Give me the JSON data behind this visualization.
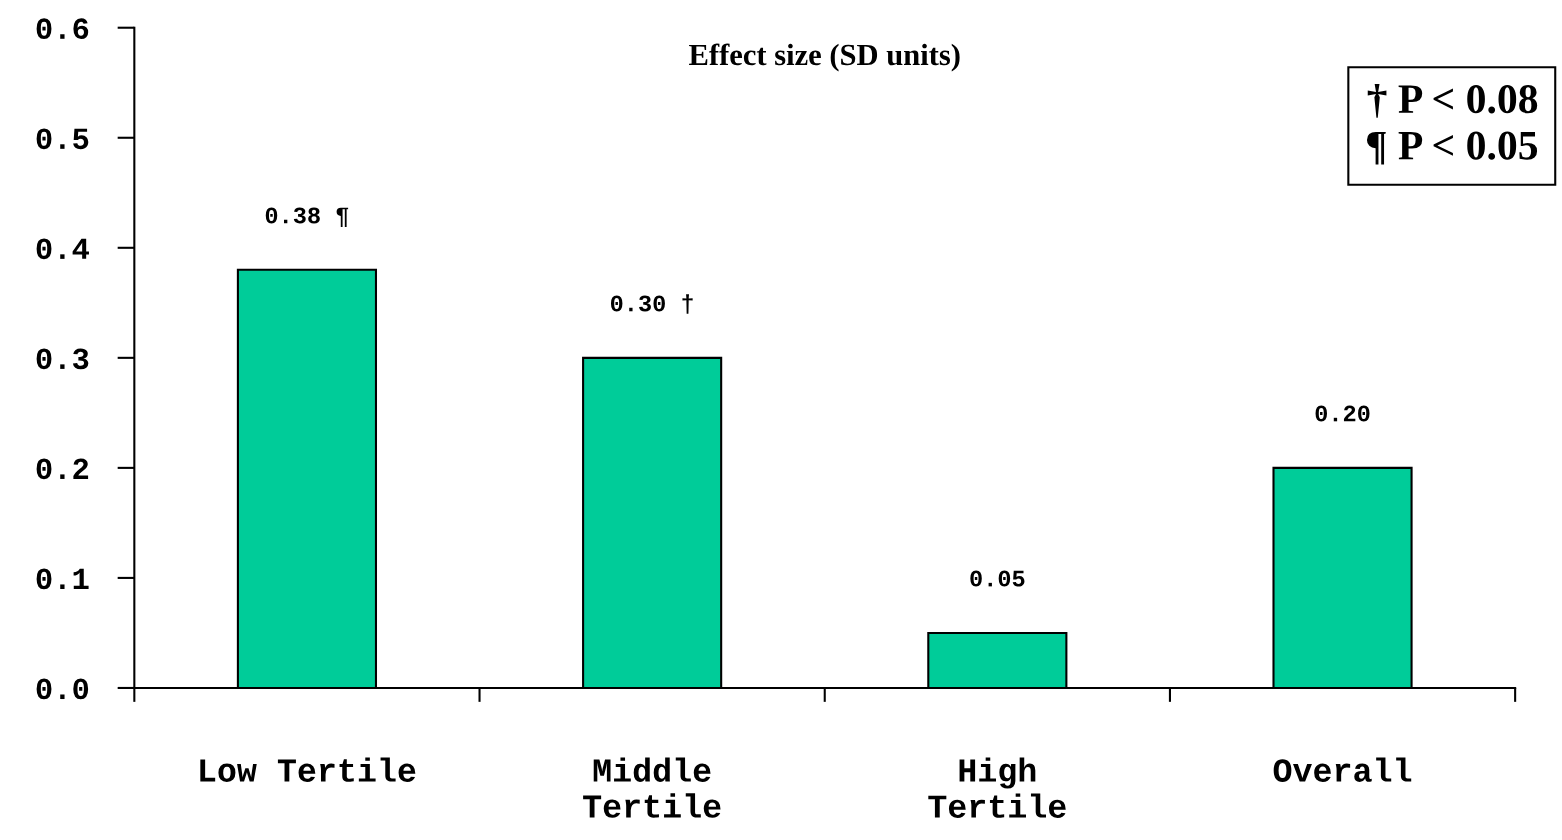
{
  "chart_data": {
    "type": "bar",
    "title": "Effect size (SD units)",
    "categories": [
      "Low Tertile",
      "Middle\nTertile",
      "High\nTertile",
      "Overall"
    ],
    "values": [
      0.38,
      0.3,
      0.05,
      0.2
    ],
    "value_labels": [
      "0.38 ¶",
      "0.30 †",
      "0.05",
      "0.20"
    ],
    "color": "#00cc99",
    "ylim": [
      0,
      0.6
    ],
    "yticks": [
      {
        "value": 0,
        "label": "0.0"
      },
      {
        "value": 0.1,
        "label": "0.1"
      },
      {
        "value": 0.2,
        "label": "0.2"
      },
      {
        "value": 0.3,
        "label": "0.3"
      },
      {
        "value": 0.4,
        "label": "0.4"
      },
      {
        "value": 0.5,
        "label": "0.5"
      },
      {
        "value": 0.6,
        "label": "0.6"
      }
    ],
    "annotations": [
      "† P < 0.08\n¶ P < 0.05"
    ],
    "grid": false,
    "legend": false
  }
}
